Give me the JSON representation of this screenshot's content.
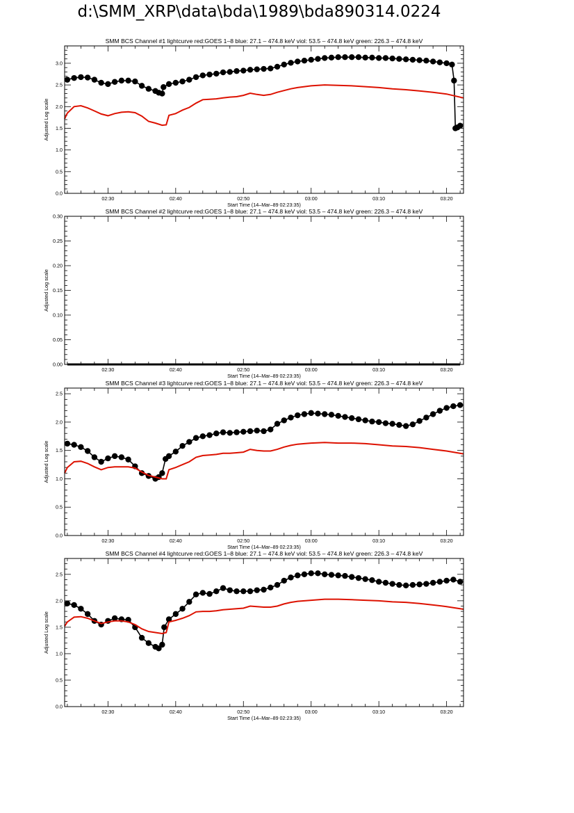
{
  "page_title": "d:\\SMM_XRP\\data\\bda\\1989\\bda890314.0224",
  "colors": {
    "goes": "#dd1100",
    "bcs": "#000000",
    "axes": "#000000"
  },
  "chart_data": [
    {
      "type": "line",
      "title": "SMM BCS Channel #1 lightcurve  red:GOES 1–8  blue: 27.1 – 474.8 keV  viol: 53.5 – 474.8 keV  green: 226.3 – 474.8 keV",
      "xlabel": "Start Time (14–Mar–89 02:23:35)",
      "ylabel": "Adjusted Log scale",
      "x_tick_labels": [
        "02:30",
        "02:40",
        "02:50",
        "03:00",
        "03:10",
        "03:20"
      ],
      "x_ticks_min": [
        30,
        40,
        50,
        60,
        70,
        80
      ],
      "xlim": [
        23.6,
        82.5
      ],
      "y_tick_labels": [
        "0.0",
        "0.5",
        "1.0",
        "1.5",
        "2.0",
        "2.5",
        "3.0"
      ],
      "ylim": [
        0,
        3.4
      ],
      "series": [
        {
          "color": "black",
          "marker": "circle",
          "x": [
            24,
            25,
            26,
            27,
            28,
            29,
            30,
            31,
            32,
            33,
            34,
            35,
            36,
            37,
            37.5,
            38,
            38.2,
            39,
            40,
            41,
            42,
            43,
            44,
            45,
            46,
            47,
            48,
            49,
            50,
            51,
            52,
            53,
            54,
            55,
            56,
            57,
            58,
            59,
            60,
            61,
            62,
            63,
            64,
            65,
            66,
            67,
            68,
            69,
            70,
            71,
            72,
            73,
            74,
            75,
            76,
            77,
            78,
            79,
            80,
            80.8,
            81.1,
            81.3,
            81.6,
            82
          ],
          "y": [
            2.62,
            2.66,
            2.68,
            2.67,
            2.62,
            2.55,
            2.52,
            2.57,
            2.6,
            2.6,
            2.58,
            2.48,
            2.41,
            2.36,
            2.32,
            2.3,
            2.45,
            2.52,
            2.55,
            2.58,
            2.62,
            2.68,
            2.72,
            2.74,
            2.76,
            2.79,
            2.8,
            2.82,
            2.83,
            2.85,
            2.86,
            2.87,
            2.88,
            2.92,
            2.97,
            3.01,
            3.04,
            3.06,
            3.08,
            3.1,
            3.12,
            3.13,
            3.14,
            3.14,
            3.14,
            3.14,
            3.13,
            3.13,
            3.12,
            3.12,
            3.11,
            3.1,
            3.09,
            3.08,
            3.07,
            3.06,
            3.04,
            3.02,
            3.0,
            2.97,
            2.6,
            1.5,
            1.52,
            1.56
          ]
        },
        {
          "color": "red",
          "marker": "none",
          "x": [
            23.6,
            24,
            25,
            26,
            27,
            28,
            29,
            30,
            31,
            32,
            33,
            34,
            35,
            36,
            37,
            38,
            38.6,
            39,
            40,
            41,
            42,
            43,
            44,
            45,
            46,
            47,
            48,
            49,
            50,
            51,
            52,
            53,
            54,
            55,
            56,
            57,
            58,
            59,
            60,
            62,
            64,
            66,
            68,
            70,
            72,
            74,
            76,
            78,
            80,
            82.5
          ],
          "y": [
            1.72,
            1.85,
            2.0,
            2.02,
            1.97,
            1.9,
            1.83,
            1.79,
            1.84,
            1.87,
            1.88,
            1.86,
            1.78,
            1.66,
            1.62,
            1.57,
            1.58,
            1.8,
            1.84,
            1.92,
            1.98,
            2.08,
            2.16,
            2.17,
            2.18,
            2.2,
            2.22,
            2.23,
            2.26,
            2.31,
            2.28,
            2.26,
            2.28,
            2.33,
            2.37,
            2.41,
            2.44,
            2.46,
            2.48,
            2.5,
            2.49,
            2.48,
            2.46,
            2.44,
            2.41,
            2.39,
            2.36,
            2.33,
            2.29,
            2.2
          ]
        }
      ]
    },
    {
      "type": "line",
      "title": "SMM BCS Channel #2 lightcurve  red:GOES 1–8  blue: 27.1 – 474.8 keV  viol: 53.5 – 474.8 keV  green: 226.3 – 474.8 keV",
      "xlabel": "Start Time (14–Mar–89 02:23:35)",
      "ylabel": "Adjusted Log scale",
      "x_tick_labels": [
        "02:30",
        "02:40",
        "02:50",
        "03:00",
        "03:10",
        "03:20"
      ],
      "x_ticks_min": [
        30,
        40,
        50,
        60,
        70,
        80
      ],
      "xlim": [
        23.6,
        82.5
      ],
      "y_tick_labels": [
        "0.00",
        "0.05",
        "0.10",
        "0.15",
        "0.20",
        "0.25",
        "0.30"
      ],
      "ylim": [
        0,
        0.3
      ],
      "series": [
        {
          "color": "black",
          "marker": "none",
          "x": [
            24,
            82
          ],
          "y": [
            0,
            0
          ]
        }
      ]
    },
    {
      "type": "line",
      "title": "SMM BCS Channel #3 lightcurve  red:GOES 1–8  blue: 27.1 – 474.8 keV  viol: 53.5 – 474.8 keV  green: 226.3 – 474.8 keV",
      "xlabel": "Start Time (14–Mar–89 02:23:35)",
      "ylabel": "Adjusted Log scale",
      "x_tick_labels": [
        "02:30",
        "02:40",
        "02:50",
        "03:00",
        "03:10",
        "03:20"
      ],
      "x_ticks_min": [
        30,
        40,
        50,
        60,
        70,
        80
      ],
      "xlim": [
        23.6,
        82.5
      ],
      "y_tick_labels": [
        "0.0",
        "0.5",
        "1.0",
        "1.5",
        "2.0",
        "2.5"
      ],
      "ylim": [
        0,
        2.6
      ],
      "series": [
        {
          "color": "black",
          "marker": "circle",
          "x": [
            24,
            25,
            26,
            27,
            28,
            29,
            30,
            31,
            32,
            33,
            34,
            35,
            36,
            37,
            37.5,
            38,
            38.5,
            39,
            40,
            41,
            42,
            43,
            44,
            45,
            46,
            47,
            48,
            49,
            50,
            51,
            52,
            53,
            54,
            55,
            56,
            57,
            58,
            59,
            60,
            61,
            62,
            63,
            64,
            65,
            66,
            67,
            68,
            69,
            70,
            71,
            72,
            73,
            74,
            75,
            76,
            77,
            78,
            79,
            80,
            81,
            82
          ],
          "y": [
            1.62,
            1.6,
            1.56,
            1.49,
            1.38,
            1.3,
            1.36,
            1.4,
            1.38,
            1.34,
            1.22,
            1.1,
            1.05,
            1.0,
            1.03,
            1.1,
            1.35,
            1.4,
            1.48,
            1.58,
            1.65,
            1.72,
            1.75,
            1.77,
            1.8,
            1.82,
            1.81,
            1.82,
            1.83,
            1.84,
            1.85,
            1.84,
            1.87,
            1.97,
            2.03,
            2.08,
            2.12,
            2.14,
            2.16,
            2.15,
            2.14,
            2.13,
            2.11,
            2.09,
            2.07,
            2.05,
            2.03,
            2.01,
            2.0,
            1.98,
            1.97,
            1.95,
            1.93,
            1.96,
            2.02,
            2.08,
            2.14,
            2.2,
            2.25,
            2.28,
            2.3
          ]
        },
        {
          "color": "red",
          "marker": "none",
          "x": [
            23.6,
            24,
            25,
            26,
            27,
            28,
            29,
            30,
            31,
            32,
            33,
            34,
            35,
            36,
            37,
            38,
            38.6,
            39,
            40,
            41,
            42,
            43,
            44,
            45,
            46,
            47,
            48,
            49,
            50,
            51,
            52,
            53,
            54,
            55,
            56,
            57,
            58,
            59,
            60,
            62,
            64,
            66,
            68,
            70,
            72,
            74,
            76,
            78,
            80,
            82.5
          ],
          "y": [
            1.1,
            1.2,
            1.3,
            1.31,
            1.27,
            1.21,
            1.16,
            1.2,
            1.21,
            1.21,
            1.21,
            1.19,
            1.12,
            1.06,
            1.03,
            1.0,
            1.0,
            1.16,
            1.2,
            1.25,
            1.3,
            1.38,
            1.41,
            1.42,
            1.43,
            1.45,
            1.45,
            1.46,
            1.47,
            1.52,
            1.5,
            1.49,
            1.49,
            1.52,
            1.56,
            1.59,
            1.61,
            1.62,
            1.63,
            1.64,
            1.63,
            1.63,
            1.62,
            1.6,
            1.58,
            1.57,
            1.55,
            1.52,
            1.49,
            1.44
          ]
        }
      ]
    },
    {
      "type": "line",
      "title": "SMM BCS Channel #4 lightcurve  red:GOES 1–8  blue: 27.1 – 474.8 keV  viol: 53.5 – 474.8 keV  green: 226.3 – 474.8 keV",
      "xlabel": "Start Time (14–Mar–89 02:23:35)",
      "ylabel": "Adjusted Log scale",
      "x_tick_labels": [
        "02:30",
        "02:40",
        "02:50",
        "03:00",
        "03:10",
        "03:20"
      ],
      "x_ticks_min": [
        30,
        40,
        50,
        60,
        70,
        80
      ],
      "xlim": [
        23.6,
        82.5
      ],
      "y_tick_labels": [
        "0.0",
        "0.5",
        "1.0",
        "1.5",
        "2.0",
        "2.5"
      ],
      "ylim": [
        0,
        2.8
      ],
      "series": [
        {
          "color": "black",
          "marker": "circle",
          "x": [
            24,
            25,
            26,
            27,
            28,
            29,
            30,
            31,
            32,
            33,
            34,
            35,
            36,
            37,
            37.5,
            38,
            38.3,
            39,
            40,
            41,
            42,
            43,
            44,
            45,
            46,
            47,
            48,
            49,
            50,
            51,
            52,
            53,
            54,
            55,
            56,
            57,
            58,
            59,
            60,
            61,
            62,
            63,
            64,
            65,
            66,
            67,
            68,
            69,
            70,
            71,
            72,
            73,
            74,
            75,
            76,
            77,
            78,
            79,
            80,
            81,
            82
          ],
          "y": [
            1.95,
            1.92,
            1.85,
            1.75,
            1.62,
            1.55,
            1.62,
            1.67,
            1.65,
            1.64,
            1.5,
            1.3,
            1.2,
            1.13,
            1.1,
            1.17,
            1.5,
            1.65,
            1.75,
            1.85,
            1.98,
            2.12,
            2.15,
            2.13,
            2.18,
            2.24,
            2.2,
            2.18,
            2.18,
            2.18,
            2.2,
            2.21,
            2.25,
            2.3,
            2.38,
            2.44,
            2.48,
            2.5,
            2.52,
            2.52,
            2.5,
            2.49,
            2.48,
            2.47,
            2.45,
            2.43,
            2.41,
            2.39,
            2.36,
            2.34,
            2.32,
            2.3,
            2.29,
            2.3,
            2.31,
            2.32,
            2.34,
            2.36,
            2.38,
            2.4,
            2.36
          ]
        },
        {
          "color": "red",
          "marker": "none",
          "x": [
            23.6,
            24,
            25,
            26,
            27,
            28,
            29,
            30,
            31,
            32,
            33,
            34,
            35,
            36,
            37,
            38,
            38.6,
            39,
            40,
            41,
            42,
            43,
            44,
            45,
            46,
            47,
            48,
            49,
            50,
            51,
            52,
            53,
            54,
            55,
            56,
            57,
            58,
            59,
            60,
            62,
            64,
            66,
            68,
            70,
            72,
            74,
            76,
            78,
            80,
            82.5
          ],
          "y": [
            1.52,
            1.6,
            1.69,
            1.7,
            1.67,
            1.62,
            1.57,
            1.6,
            1.62,
            1.62,
            1.6,
            1.55,
            1.47,
            1.42,
            1.4,
            1.38,
            1.4,
            1.6,
            1.63,
            1.67,
            1.72,
            1.79,
            1.8,
            1.8,
            1.81,
            1.83,
            1.84,
            1.85,
            1.86,
            1.9,
            1.89,
            1.88,
            1.88,
            1.9,
            1.94,
            1.97,
            1.99,
            2.0,
            2.01,
            2.03,
            2.03,
            2.02,
            2.01,
            2.0,
            1.98,
            1.97,
            1.95,
            1.92,
            1.89,
            1.84
          ]
        }
      ]
    }
  ]
}
